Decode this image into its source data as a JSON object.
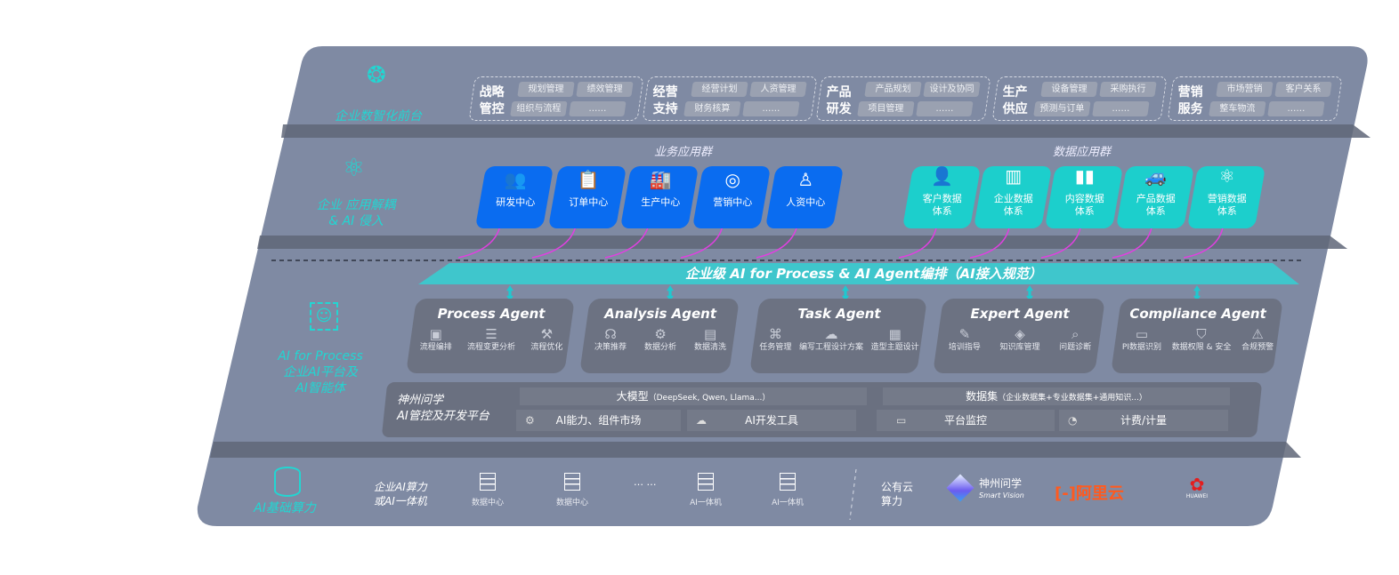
{
  "colors": {
    "panel": "#7f8aa3",
    "business_tile": "#0a6cf0",
    "data_tile": "#1ccfcc",
    "accent_cyan": "#22d6d2",
    "connector": "#e040e0",
    "aliyun": "#ff5a1f",
    "huawei": "#e41d1d"
  },
  "layers": {
    "frontend": {
      "label": "企业数智化前台",
      "icon": "brain-icon"
    },
    "apps": {
      "label1": "企业 应用解耦",
      "label2": "& AI 侵入",
      "icon": "molecule-icon"
    },
    "ai": {
      "label1": "AI for Process",
      "label2": "企业AI平台及",
      "label3": "AI智能体",
      "icon": "face-scan-icon"
    },
    "infra": {
      "label": "AI基础算力",
      "icon": "database-icon"
    }
  },
  "groups": [
    {
      "title1": "战略",
      "title2": "管控",
      "items": [
        "规划管理",
        "绩效管理",
        "组织与流程",
        "……"
      ]
    },
    {
      "title1": "经营",
      "title2": "支持",
      "items": [
        "经营计划",
        "人资管理",
        "财务核算",
        "……"
      ]
    },
    {
      "title1": "产品",
      "title2": "研发",
      "items": [
        "产品规划",
        "设计及协同",
        "项目管理",
        "……"
      ]
    },
    {
      "title1": "生产",
      "title2": "供应",
      "items": [
        "设备管理",
        "采购执行",
        "预测与订单",
        "……"
      ]
    },
    {
      "title1": "营销",
      "title2": "服务",
      "items": [
        "市场营销",
        "客户关系",
        "整车物流",
        "……"
      ]
    }
  ],
  "business_apps": {
    "title": "业务应用群",
    "tiles": [
      {
        "label": "研发中心",
        "icon": "users-icon"
      },
      {
        "label": "订单中心",
        "icon": "clipboard-icon"
      },
      {
        "label": "生产中心",
        "icon": "factory-icon"
      },
      {
        "label": "营销中心",
        "icon": "target-icon"
      },
      {
        "label": "人资中心",
        "icon": "person-icon"
      }
    ]
  },
  "data_apps": {
    "title": "数据应用群",
    "tiles": [
      {
        "l1": "客户数据",
        "l2": "体系",
        "icon": "user-icon"
      },
      {
        "l1": "企业数据",
        "l2": "体系",
        "icon": "building-icon"
      },
      {
        "l1": "内容数据",
        "l2": "体系",
        "icon": "books-icon"
      },
      {
        "l1": "产品数据",
        "l2": "体系",
        "icon": "car-icon"
      },
      {
        "l1": "营销数据",
        "l2": "体系",
        "icon": "atom-icon"
      }
    ]
  },
  "banner": "企业级 AI for Process & AI Agent编排（AI接入规范）",
  "agents": [
    {
      "title": "Process Agent",
      "items": [
        {
          "label": "流程编排",
          "icon": "chart-window-icon"
        },
        {
          "label": "流程变更分析",
          "icon": "list-icon"
        },
        {
          "label": "流程优化",
          "icon": "tools-icon"
        }
      ]
    },
    {
      "title": "Analysis Agent",
      "items": [
        {
          "label": "决策推荐",
          "icon": "head-icon"
        },
        {
          "label": "数据分析",
          "icon": "gear-icon"
        },
        {
          "label": "数据清洗",
          "icon": "document-icon"
        }
      ]
    },
    {
      "title": "Task Agent",
      "items": [
        {
          "label": "任务管理",
          "icon": "network-icon"
        },
        {
          "label": "编写工程设计方案",
          "icon": "cloud-icon"
        },
        {
          "label": "造型主题设计",
          "icon": "tablet-icon"
        }
      ]
    },
    {
      "title": "Expert Agent",
      "items": [
        {
          "label": "培训指导",
          "icon": "teacher-icon"
        },
        {
          "label": "知识库管理",
          "icon": "layers-icon"
        },
        {
          "label": "问题诊断",
          "icon": "diagnose-icon"
        }
      ]
    },
    {
      "title": "Compliance Agent",
      "items": [
        {
          "label": "PI数据识别",
          "icon": "id-icon"
        },
        {
          "label": "数据权限 & 安全",
          "icon": "shield-icon"
        },
        {
          "label": "合规预警",
          "icon": "alert-icon"
        }
      ]
    }
  ],
  "platform": {
    "name1": "神州问学",
    "name2": "AI管控及开发平台",
    "model": "大模型",
    "model_note": "（DeepSeek, Qwen, Llama...）",
    "dataset": "数据集",
    "dataset_note": "（企业数据集+专业数据集+通用知识...）",
    "market": "AI能力、组件市场",
    "devtools": "AI开发工具",
    "monitor": "平台监控",
    "billing": "计费/计量"
  },
  "infra": {
    "enterprise1": "企业AI算力",
    "enterprise2": "或AI一体机",
    "servers": [
      "数据中心",
      "数据中心",
      "AI一体机",
      "AI一体机"
    ],
    "ellipsis": "… …",
    "public1": "公有云",
    "public2": "算力",
    "vendors": {
      "shenzhou": "神州问学",
      "shenzhou_en": "Smart Vision",
      "aliyun": "阿里云",
      "huawei": "HUAWEI"
    }
  }
}
